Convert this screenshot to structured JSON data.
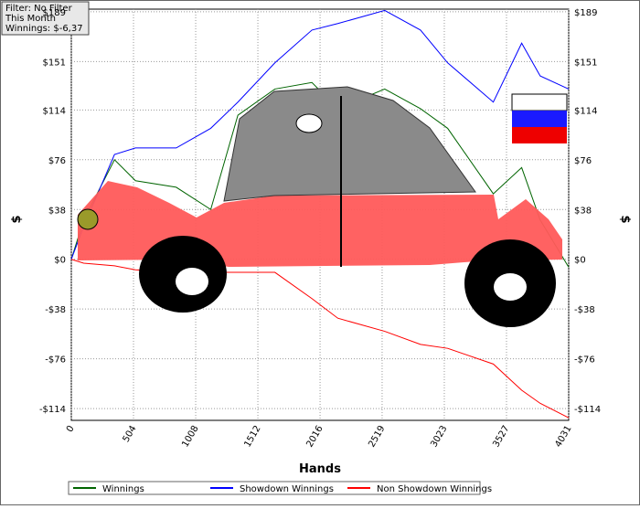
{
  "chart_data": {
    "type": "line",
    "filter_box": [
      "Filter: No Filter",
      "This Month",
      "Winnings: $-6,37"
    ],
    "x_label": "Hands",
    "y_label": "$",
    "x": [
      0,
      100,
      350,
      520,
      850,
      1130,
      1350,
      1650,
      1950,
      2160,
      2540,
      2830,
      3050,
      3420,
      3650,
      3800,
      4031
    ],
    "series": [
      {
        "name": "Winnings",
        "color": "#006400",
        "values": [
          0,
          30,
          76,
          60,
          55,
          38,
          110,
          130,
          135,
          115,
          130,
          115,
          100,
          50,
          70,
          30,
          -6
        ]
      },
      {
        "name": "Showdown Winnings",
        "color": "#0000ff",
        "values": [
          0,
          25,
          80,
          85,
          85,
          100,
          120,
          150,
          175,
          180,
          190,
          175,
          150,
          120,
          165,
          140,
          130
        ]
      },
      {
        "name": "Non Showdown Winnings",
        "color": "#ff0000",
        "values": [
          0,
          -3,
          -5,
          -8,
          -10,
          -10,
          -10,
          -10,
          -30,
          -45,
          -55,
          -65,
          -68,
          -80,
          -100,
          -110,
          -121
        ]
      }
    ],
    "xlim": [
      0,
      4031
    ],
    "xticks": [
      0,
      504,
      1008,
      1512,
      2016,
      2519,
      3023,
      3527,
      4031
    ],
    "ylim": [
      -123,
      191
    ],
    "yticks": [
      {
        "value": -114,
        "label": "-$114"
      },
      {
        "value": -76,
        "label": "-$76"
      },
      {
        "value": -38,
        "label": "-$38"
      },
      {
        "value": 0,
        "label": "$0"
      },
      {
        "value": 38,
        "label": "$38"
      },
      {
        "value": 76,
        "label": "$76"
      },
      {
        "value": 114,
        "label": "$114"
      },
      {
        "value": 151,
        "label": "$151"
      },
      {
        "value": 189,
        "label": "$189"
      }
    ],
    "grid": true
  }
}
